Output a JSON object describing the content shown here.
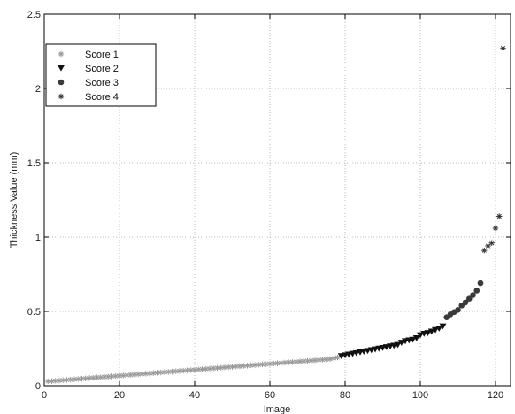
{
  "chart_data": {
    "type": "scatter",
    "title": "",
    "xlabel": "Image",
    "ylabel": "Thickness Value (mm)",
    "xlim": [
      0,
      124
    ],
    "ylim": [
      0,
      2.5
    ],
    "xticks": [
      "0",
      "20",
      "40",
      "60",
      "80",
      "100",
      "120"
    ],
    "yticks": [
      "0",
      "0.5",
      "1",
      "1.5",
      "2",
      "2.5"
    ],
    "grid": true,
    "legend_position": "top-left",
    "series": [
      {
        "name": "Score 1",
        "marker": "asterisk",
        "color": "#9a9a9a",
        "x": [
          1,
          2,
          3,
          4,
          5,
          6,
          7,
          8,
          9,
          10,
          11,
          12,
          13,
          14,
          15,
          16,
          17,
          18,
          19,
          20,
          21,
          22,
          23,
          24,
          25,
          26,
          27,
          28,
          29,
          30,
          31,
          32,
          33,
          34,
          35,
          36,
          37,
          38,
          39,
          40,
          41,
          42,
          43,
          44,
          45,
          46,
          47,
          48,
          49,
          50,
          51,
          52,
          53,
          54,
          55,
          56,
          57,
          58,
          59,
          60,
          61,
          62,
          63,
          64,
          65,
          66,
          67,
          68,
          69,
          70,
          71,
          72,
          73,
          74,
          75,
          76,
          77,
          78
        ],
        "y": [
          0.03,
          0.031,
          0.033,
          0.035,
          0.037,
          0.039,
          0.041,
          0.043,
          0.045,
          0.047,
          0.049,
          0.051,
          0.053,
          0.055,
          0.057,
          0.059,
          0.061,
          0.063,
          0.065,
          0.067,
          0.069,
          0.071,
          0.073,
          0.075,
          0.077,
          0.079,
          0.081,
          0.083,
          0.085,
          0.087,
          0.089,
          0.091,
          0.093,
          0.095,
          0.097,
          0.099,
          0.101,
          0.103,
          0.105,
          0.107,
          0.109,
          0.111,
          0.113,
          0.115,
          0.117,
          0.119,
          0.121,
          0.123,
          0.125,
          0.127,
          0.129,
          0.131,
          0.133,
          0.135,
          0.137,
          0.139,
          0.141,
          0.143,
          0.145,
          0.147,
          0.149,
          0.151,
          0.153,
          0.155,
          0.157,
          0.159,
          0.161,
          0.163,
          0.165,
          0.167,
          0.169,
          0.171,
          0.173,
          0.175,
          0.177,
          0.18,
          0.185,
          0.19
        ]
      },
      {
        "name": "Score 2",
        "marker": "triangle-down",
        "color": "#111111",
        "x": [
          79,
          80,
          81,
          82,
          83,
          84,
          85,
          86,
          87,
          88,
          89,
          90,
          91,
          92,
          93,
          94,
          95,
          96,
          97,
          98,
          99,
          100,
          101,
          102,
          103,
          104,
          105,
          106
        ],
        "y": [
          0.2,
          0.205,
          0.21,
          0.215,
          0.22,
          0.225,
          0.23,
          0.235,
          0.24,
          0.245,
          0.25,
          0.255,
          0.26,
          0.265,
          0.27,
          0.275,
          0.29,
          0.3,
          0.305,
          0.31,
          0.32,
          0.34,
          0.35,
          0.355,
          0.365,
          0.375,
          0.385,
          0.4
        ]
      },
      {
        "name": "Score 3",
        "marker": "circle",
        "color": "#3a3a3a",
        "x": [
          107,
          108,
          109,
          110,
          111,
          112,
          113,
          114,
          115,
          116
        ],
        "y": [
          0.46,
          0.48,
          0.495,
          0.51,
          0.54,
          0.56,
          0.585,
          0.61,
          0.64,
          0.69
        ]
      },
      {
        "name": "Score 4",
        "marker": "asterisk",
        "color": "#333333",
        "x": [
          117,
          118,
          119,
          120,
          121,
          122
        ],
        "y": [
          0.91,
          0.94,
          0.96,
          1.06,
          1.14,
          2.27
        ]
      }
    ]
  }
}
